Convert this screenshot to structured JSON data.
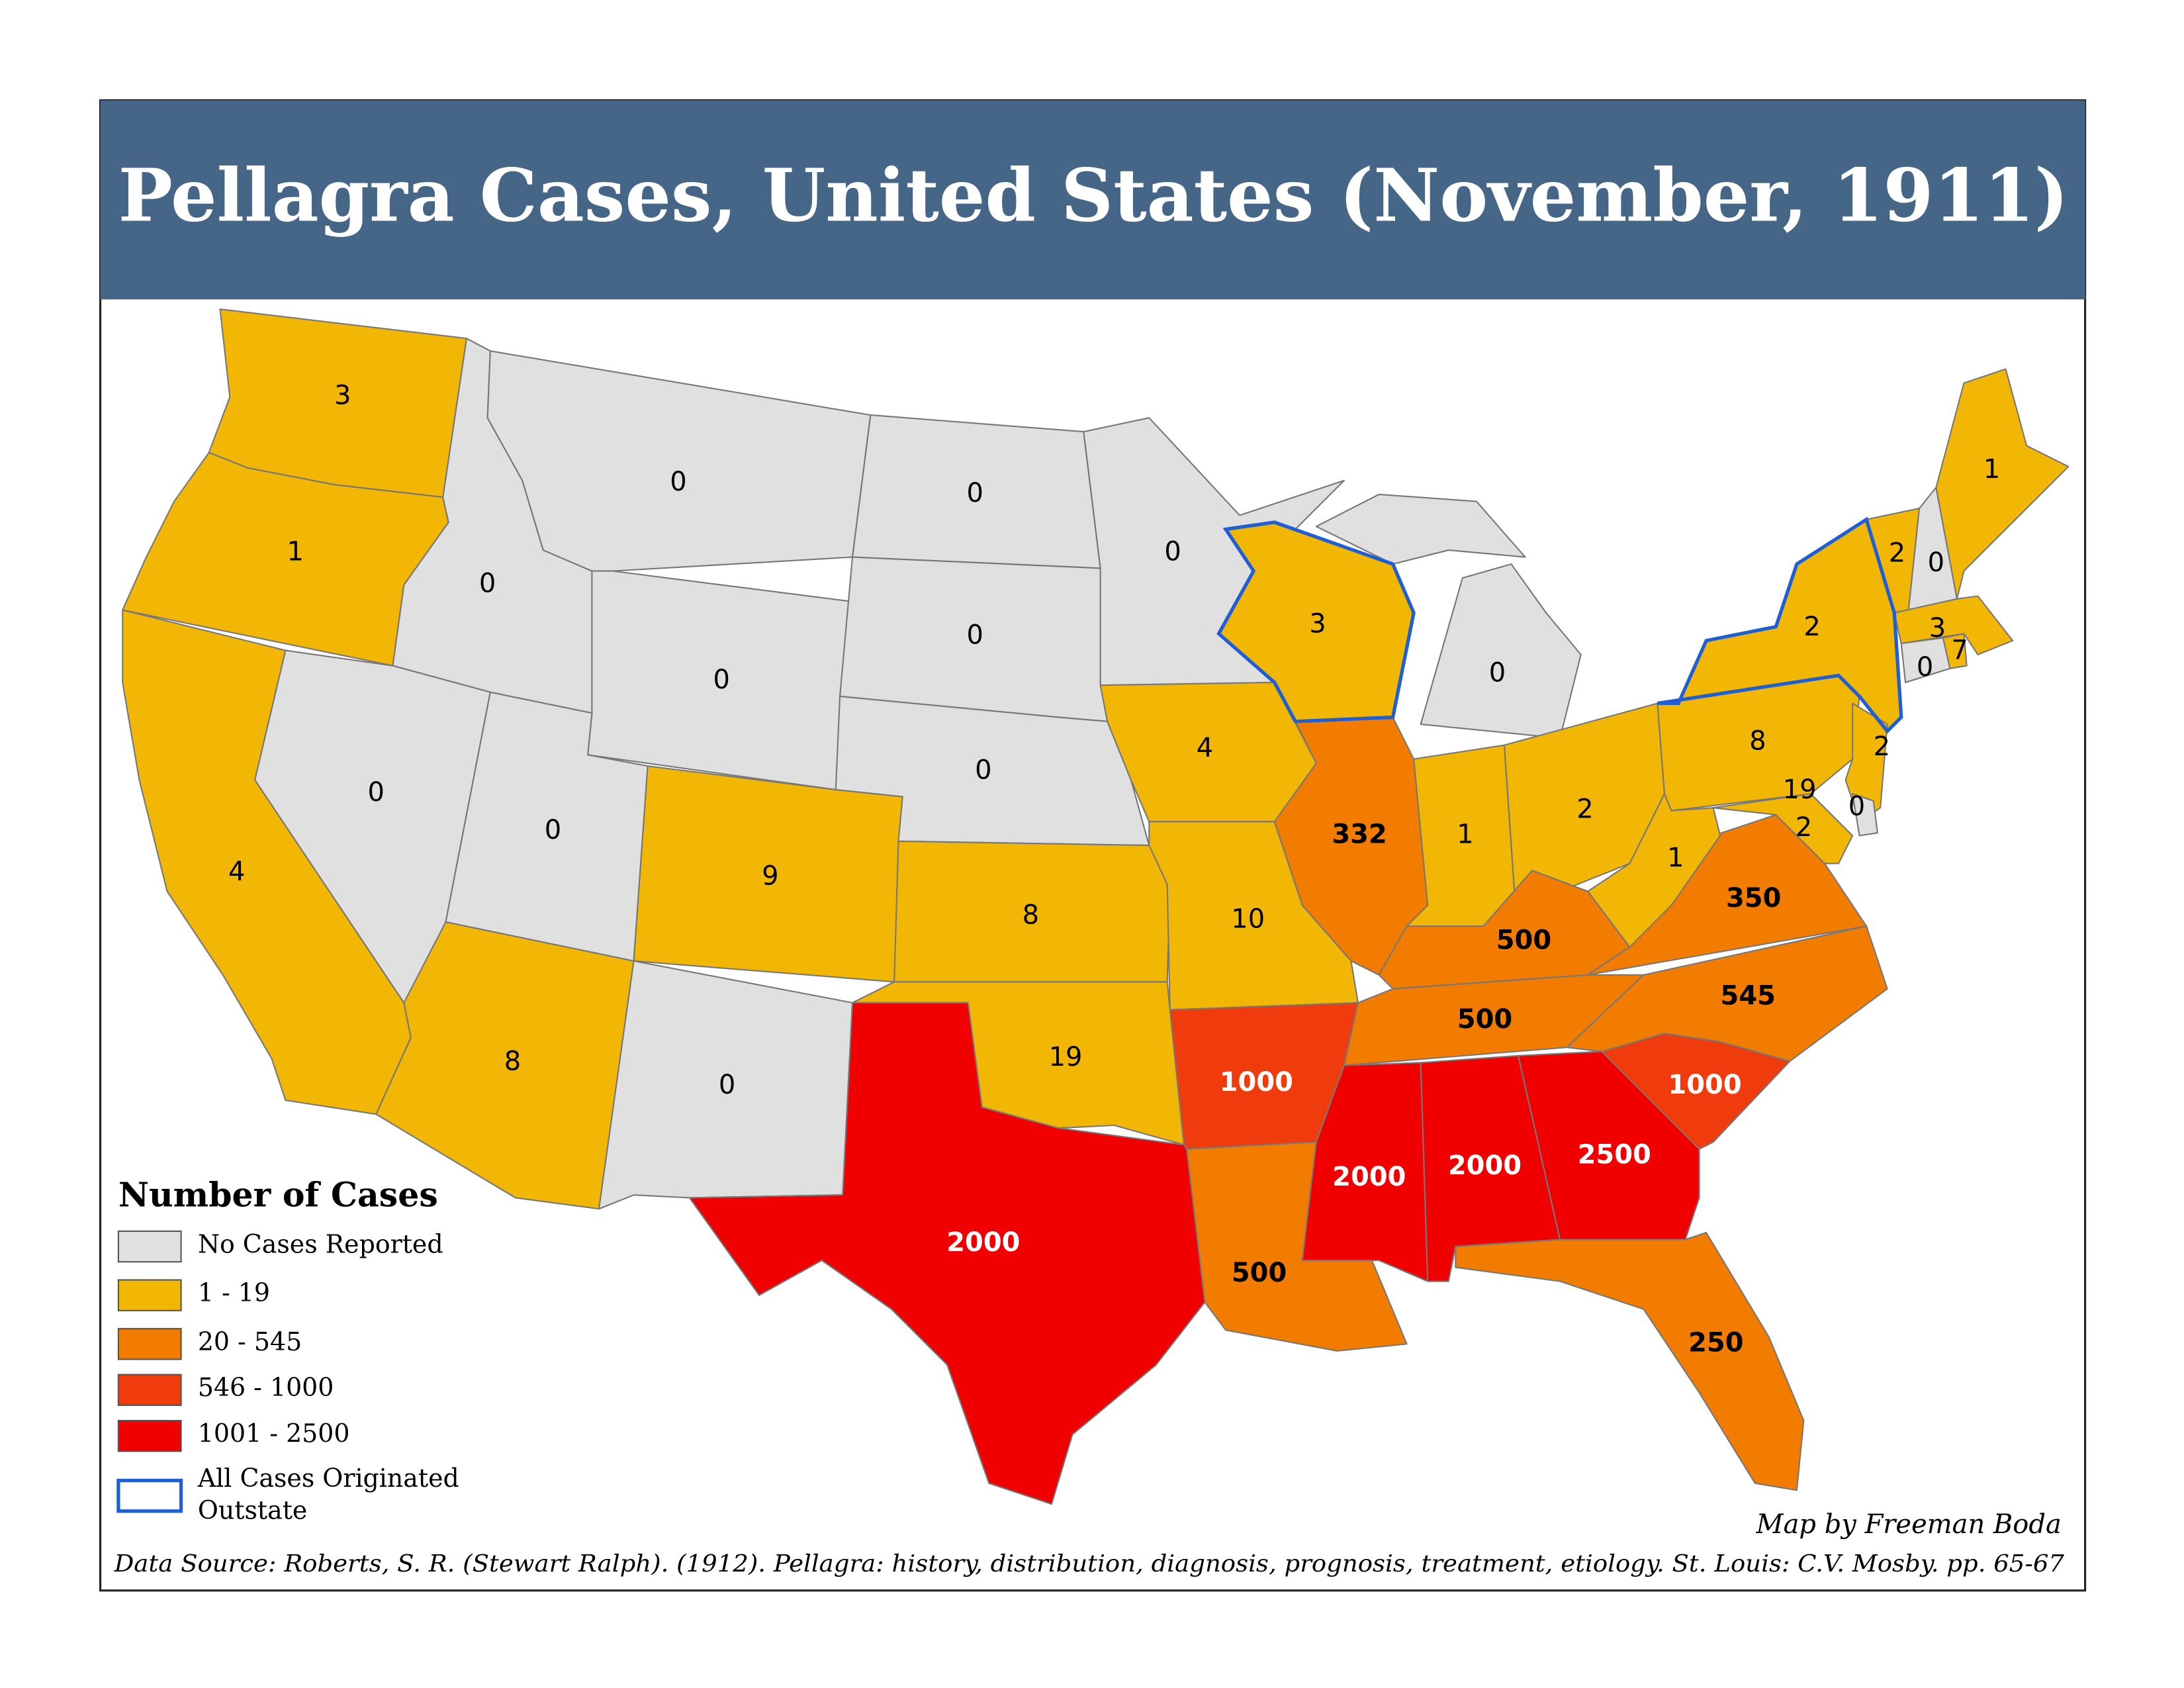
{
  "title": "Pellagra Cases, United States (November, 1911)",
  "legend": {
    "title": "Number of Cases",
    "items": [
      {
        "label": "No Cases Reported",
        "color": "#e0e0e0",
        "number_color": "#000000",
        "number_weight": "normal"
      },
      {
        "label": "1 - 19",
        "color": "#f2b705",
        "number_color": "#000000",
        "number_weight": "normal"
      },
      {
        "label": "20 - 545",
        "color": "#f27c00",
        "number_color": "#000000",
        "number_weight": "bold"
      },
      {
        "label": "546 - 1000",
        "color": "#f03c0c",
        "number_color": "#ffffff",
        "number_weight": "bold"
      },
      {
        "label": "1001 - 2500",
        "color": "#f00000",
        "number_color": "#ffffff",
        "number_weight": "bold"
      },
      {
        "label": [
          "All Cases Originated",
          "Outstate"
        ],
        "outline": "#1f5fd6"
      }
    ]
  },
  "states": [
    {
      "value": 3,
      "color": "#f2b705"
    },
    {
      "value": 1,
      "color": "#f2b705"
    },
    {
      "value": 4,
      "color": "#f2b705"
    },
    {
      "value": 0,
      "color": "#e0e0e0"
    },
    {
      "value": 0,
      "color": "#e0e0e0"
    },
    {
      "value": 0,
      "color": "#e0e0e0"
    },
    {
      "value": 0,
      "color": "#e0e0e0"
    },
    {
      "value": 0,
      "color": "#e0e0e0"
    },
    {
      "value": 8,
      "color": "#f2b705"
    },
    {
      "value": 9,
      "color": "#f2b705"
    },
    {
      "value": 0,
      "color": "#e0e0e0"
    },
    {
      "value": 0,
      "color": "#e0e0e0"
    },
    {
      "value": 0,
      "color": "#e0e0e0"
    },
    {
      "value": 0,
      "color": "#e0e0e0"
    },
    {
      "value": 8,
      "color": "#f2b705"
    },
    {
      "value": 19,
      "color": "#f2b705"
    },
    {
      "value": 2000,
      "color": "#f00000"
    },
    {
      "value": 0,
      "color": "#e0e0e0"
    },
    {
      "value": 4,
      "color": "#f2b705"
    },
    {
      "value": 10,
      "color": "#f2b705"
    },
    {
      "value": 1000,
      "color": "#f03c0c"
    },
    {
      "value": 500,
      "color": "#f27c00"
    },
    {
      "value": 3,
      "color": "#f2b705",
      "outstate": true
    },
    {
      "value": 332,
      "color": "#f27c00"
    },
    {
      "value": 0,
      "color": "#e0e0e0"
    },
    {
      "value": 1,
      "color": "#f2b705"
    },
    {
      "value": 2,
      "color": "#f2b705"
    },
    {
      "value": 500,
      "color": "#f27c00"
    },
    {
      "value": 500,
      "color": "#f27c00"
    },
    {
      "value": 2000,
      "color": "#f00000"
    },
    {
      "value": 2000,
      "color": "#f00000"
    },
    {
      "value": 2500,
      "color": "#f00000"
    },
    {
      "value": 250,
      "color": "#f27c00"
    },
    {
      "value": 1000,
      "color": "#f03c0c"
    },
    {
      "value": 545,
      "color": "#f27c00"
    },
    {
      "value": 350,
      "color": "#f27c00"
    },
    {
      "value": 1,
      "color": "#f2b705"
    },
    {
      "value": 8,
      "color": "#f2b705"
    },
    {
      "value": 2,
      "color": "#f2b705",
      "outstate": true
    },
    {
      "value": 2,
      "color": "#f2b705"
    },
    {
      "value": 19,
      "color": "#f2b705"
    },
    {
      "value": 2,
      "color": "#f2b705"
    },
    {
      "value": 0,
      "color": "#e0e0e0"
    },
    {
      "value": 2,
      "color": "#f2b705"
    },
    {
      "value": 0,
      "color": "#e0e0e0"
    },
    {
      "value": 1,
      "color": "#f2b705"
    },
    {
      "value": 3,
      "color": "#f2b705"
    },
    {
      "value": 0,
      "color": "#e0e0e0"
    },
    {
      "value": 7,
      "color": "#f2b705"
    }
  ],
  "credit": "Map by Freeman Boda",
  "source": "Data Source: Roberts, S. R. (Stewart Ralph). (1912). Pellagra: history, distribution, diagnosis, prognosis, treatment, etiology. St. Louis: C.V. Mosby. pp. 65-67"
}
